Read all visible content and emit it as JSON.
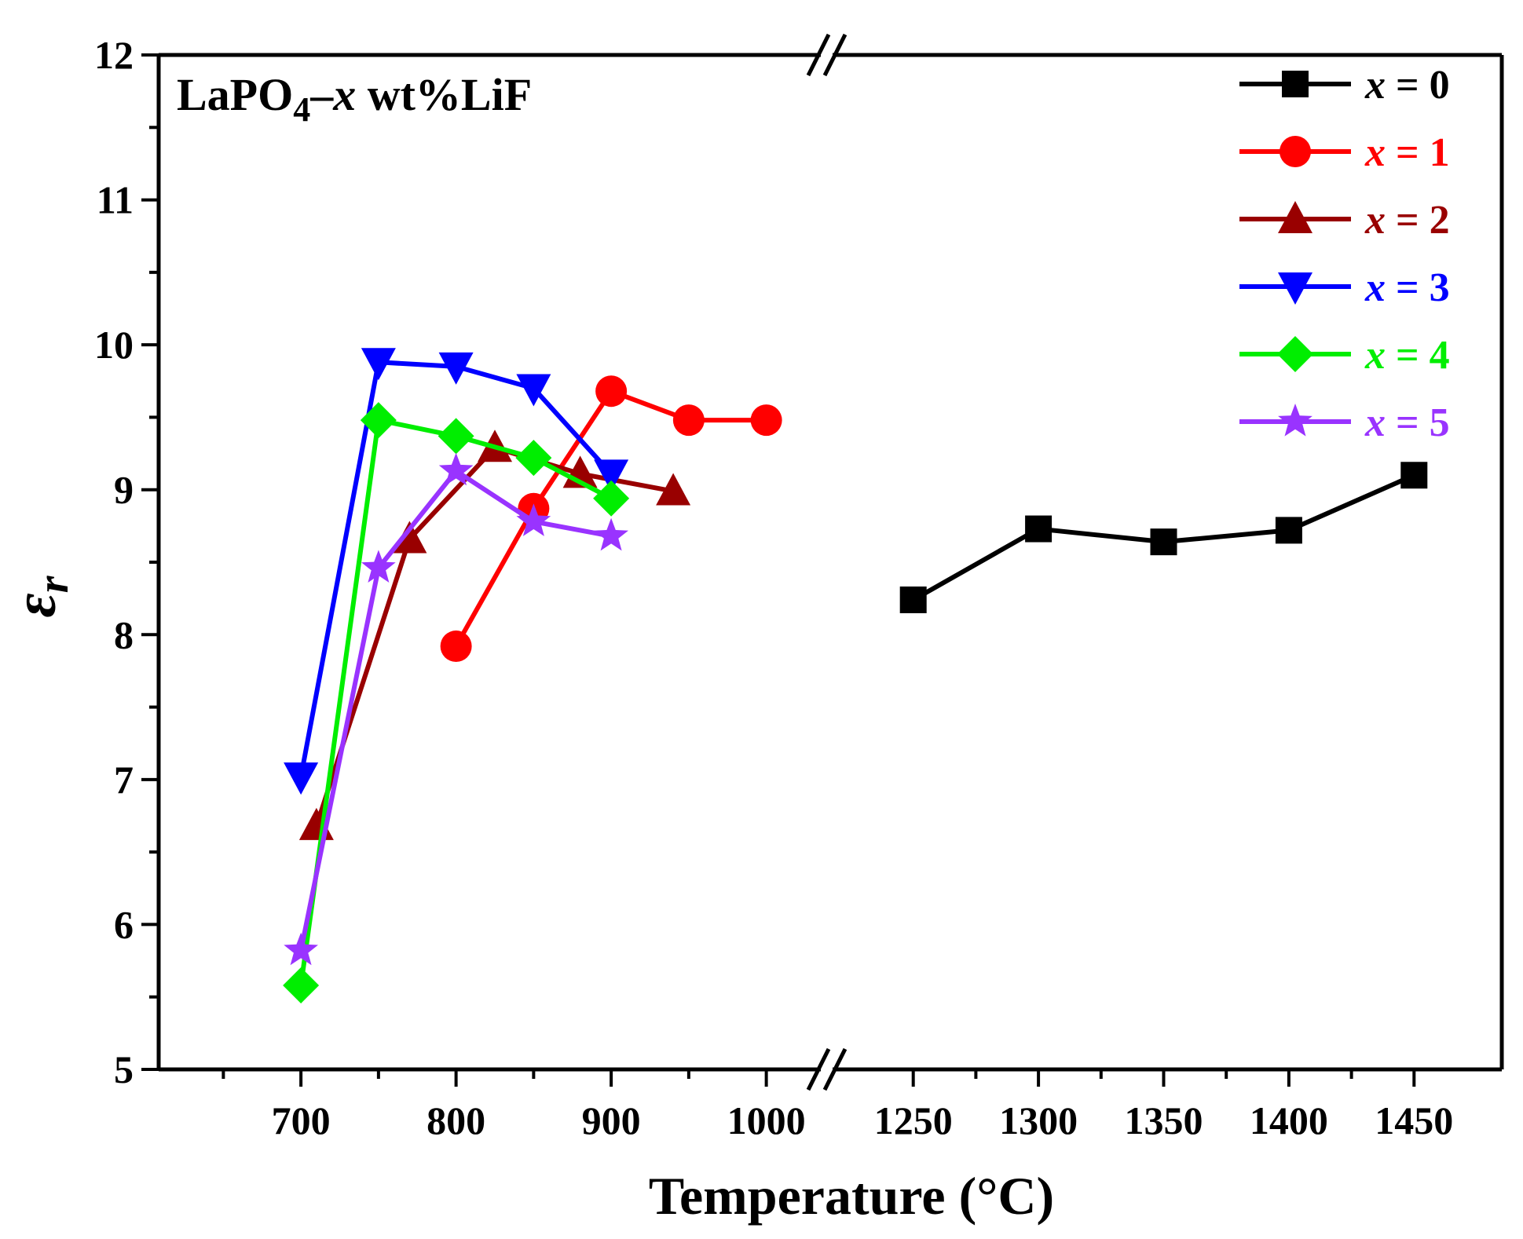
{
  "chart_data": {
    "type": "line",
    "xlabel": "Temperature (°C)",
    "ylabel": "ε_r",
    "ylabel_symbol": "ε",
    "ylabel_sub": "r",
    "annotation": {
      "prefix": "LaPO",
      "sub": "4",
      "dash": "–",
      "var": "x",
      "suffix": " wt%LiF"
    },
    "ylim": [
      5,
      12
    ],
    "yticks": [
      5,
      6,
      7,
      8,
      9,
      10,
      11,
      12
    ],
    "x_segments": [
      {
        "range": [
          625,
          1025
        ],
        "ticks": [
          700,
          800,
          900,
          1000
        ],
        "minor": [
          650,
          750,
          850,
          950
        ]
      },
      {
        "range": [
          1225,
          1475
        ],
        "ticks": [
          1250,
          1300,
          1350,
          1400,
          1450
        ],
        "minor": [
          1275,
          1325,
          1375,
          1425
        ]
      }
    ],
    "legend_position": "top-right",
    "series": [
      {
        "name": "x = 0",
        "var": "x",
        "eq": " = 0",
        "color": "#000000",
        "marker": "square",
        "x": [
          1250,
          1300,
          1350,
          1400,
          1450
        ],
        "y": [
          8.24,
          8.73,
          8.64,
          8.72,
          9.1
        ]
      },
      {
        "name": "x = 1",
        "var": "x",
        "eq": " = 1",
        "color": "#ff0000",
        "marker": "circle",
        "x": [
          800,
          850,
          900,
          950,
          1000
        ],
        "y": [
          7.92,
          8.87,
          9.68,
          9.48,
          9.48
        ]
      },
      {
        "name": "x = 2",
        "var": "x",
        "eq": " = 2",
        "color": "#990000",
        "marker": "triangle-up",
        "x": [
          710,
          770,
          825,
          880,
          940
        ],
        "y": [
          6.68,
          8.66,
          9.29,
          9.11,
          8.99
        ]
      },
      {
        "name": "x = 3",
        "var": "x",
        "eq": " = 3",
        "color": "#0000ff",
        "marker": "triangle-down",
        "x": [
          700,
          750,
          800,
          850,
          900
        ],
        "y": [
          7.02,
          9.88,
          9.85,
          9.7,
          9.11
        ]
      },
      {
        "name": "x = 4",
        "var": "x",
        "eq": " = 4",
        "color": "#00ee00",
        "marker": "diamond",
        "x": [
          700,
          750,
          800,
          850,
          900
        ],
        "y": [
          5.58,
          9.48,
          9.37,
          9.22,
          8.94
        ]
      },
      {
        "name": "x = 5",
        "var": "x",
        "eq": " = 5",
        "color": "#9933ff",
        "marker": "star",
        "x": [
          700,
          750,
          800,
          850,
          900
        ],
        "y": [
          5.82,
          8.46,
          9.13,
          8.78,
          8.68
        ]
      }
    ]
  }
}
